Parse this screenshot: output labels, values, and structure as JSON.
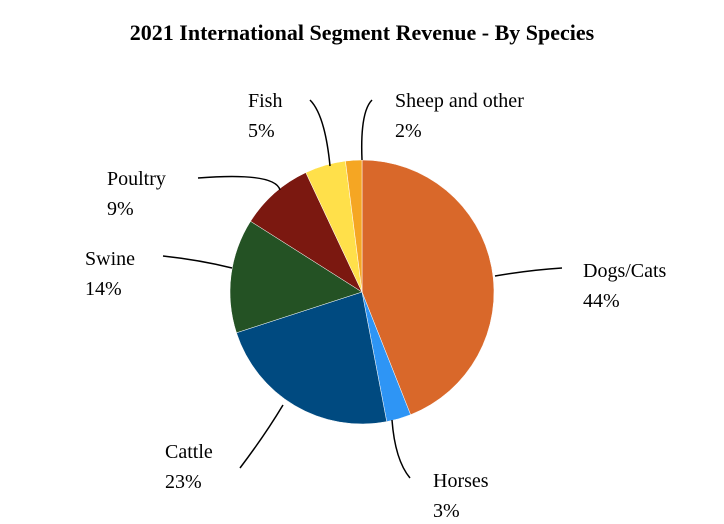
{
  "chart_data": {
    "type": "pie",
    "title": "2021 International Segment Revenue - By Species",
    "categories": [
      "Dogs/Cats",
      "Horses",
      "Cattle",
      "Swine",
      "Poultry",
      "Fish",
      "Sheep and other"
    ],
    "values": [
      44,
      3,
      23,
      14,
      9,
      5,
      2
    ],
    "value_labels": [
      "44%",
      "3%",
      "23%",
      "14%",
      "9%",
      "5%",
      "2%"
    ],
    "colors": [
      "#D9682A",
      "#2E95F5",
      "#004A80",
      "#245224",
      "#7B1810",
      "#FFE04A",
      "#F5A623"
    ]
  }
}
